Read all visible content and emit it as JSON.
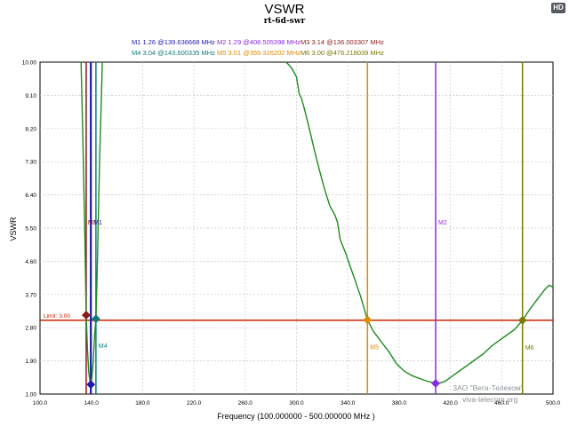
{
  "header": {
    "title": "VSWR",
    "subtitle": "rt-6d-swr",
    "badge": "HD"
  },
  "legend": {
    "row1": [
      {
        "text": "M1  1.26 @139.636668 MHz ",
        "color": "#1a1ab0"
      },
      {
        "text": "M2  1.29 @408.505398 MHz",
        "color": "#8a2be2"
      },
      {
        "text": "M3  3.14 @136.003307 MHz",
        "color": "#8b1a1a"
      }
    ],
    "row2": [
      {
        "text": "M4  3.04 @143.600335 MHz ",
        "color": "#0f7a7a"
      },
      {
        "text": "M5  3.01 @355.326202 MHz",
        "color": "#e08a00"
      },
      {
        "text": "M6  3.00 @476.218039 MHz",
        "color": "#7a7a00"
      }
    ]
  },
  "watermark": {
    "line1": "ЗАО \"Вега-Телеком\"",
    "line2": "viva-telecom.org"
  },
  "chart_data": {
    "type": "line",
    "title": "VSWR",
    "subtitle": "rt-6d-swr",
    "xlabel": "Frequency (100.000000 - 500.000000 MHz )",
    "ylabel": "VSWR",
    "xlim": [
      100,
      500
    ],
    "ylim": [
      1.0,
      10.0
    ],
    "x_ticks": [
      "100.0",
      "140.0",
      "180.0",
      "220.0",
      "260.0",
      "300.0",
      "340.0",
      "380.0",
      "420.0",
      "460.0",
      "500.0"
    ],
    "y_ticks": [
      "1.00",
      "1.90",
      "2.80",
      "3.70",
      "4.60",
      "5.50",
      "6.40",
      "7.30",
      "8.20",
      "9.10",
      "10.00"
    ],
    "grid": true,
    "limit": {
      "value": 3.0,
      "label": "Limit: 3.00",
      "color": "#cc2200"
    },
    "series": [
      {
        "name": "VSWR",
        "color": "#1e8c1e",
        "points": [
          [
            132.0,
            10.0
          ],
          [
            133.5,
            7.8
          ],
          [
            135.0,
            5.2
          ],
          [
            136.0,
            3.14
          ],
          [
            137.0,
            2.2
          ],
          [
            138.0,
            1.6
          ],
          [
            138.8,
            1.38
          ],
          [
            139.64,
            1.26
          ],
          [
            140.5,
            1.45
          ],
          [
            141.5,
            1.9
          ],
          [
            142.5,
            2.55
          ],
          [
            143.6,
            3.04
          ],
          [
            144.5,
            4.2
          ],
          [
            145.5,
            5.8
          ],
          [
            146.6,
            7.5
          ],
          [
            147.8,
            9.0
          ],
          [
            148.6,
            10.0
          ],
          [
            292.0,
            10.0
          ],
          [
            296.0,
            9.85
          ],
          [
            300.0,
            9.6
          ],
          [
            302.0,
            9.15
          ],
          [
            304.0,
            9.0
          ],
          [
            306.0,
            8.75
          ],
          [
            310.0,
            8.2
          ],
          [
            314.0,
            7.6
          ],
          [
            318.0,
            7.05
          ],
          [
            322.0,
            6.55
          ],
          [
            326.0,
            6.1
          ],
          [
            330.0,
            5.85
          ],
          [
            332.0,
            5.65
          ],
          [
            334.0,
            5.2
          ],
          [
            338.0,
            4.85
          ],
          [
            342.0,
            4.45
          ],
          [
            346.0,
            4.05
          ],
          [
            350.0,
            3.65
          ],
          [
            355.33,
            3.01
          ],
          [
            360.0,
            2.7
          ],
          [
            366.0,
            2.42
          ],
          [
            372.0,
            2.15
          ],
          [
            378.0,
            1.82
          ],
          [
            384.0,
            1.62
          ],
          [
            390.0,
            1.5
          ],
          [
            396.0,
            1.42
          ],
          [
            402.0,
            1.35
          ],
          [
            408.51,
            1.29
          ],
          [
            412.0,
            1.3
          ],
          [
            416.0,
            1.35
          ],
          [
            422.0,
            1.5
          ],
          [
            428.0,
            1.65
          ],
          [
            434.0,
            1.8
          ],
          [
            440.0,
            1.95
          ],
          [
            446.0,
            2.1
          ],
          [
            452.0,
            2.3
          ],
          [
            458.0,
            2.45
          ],
          [
            464.0,
            2.6
          ],
          [
            470.0,
            2.75
          ],
          [
            476.22,
            3.0
          ],
          [
            482.0,
            3.3
          ],
          [
            488.0,
            3.58
          ],
          [
            494.0,
            3.85
          ],
          [
            497.0,
            3.95
          ],
          [
            500.0,
            3.9
          ]
        ]
      }
    ],
    "markers": [
      {
        "name": "M1",
        "x": 139.636668,
        "y": 1.26,
        "color": "#1a1ab0",
        "label_pos": "top"
      },
      {
        "name": "M2",
        "x": 408.505398,
        "y": 1.29,
        "color": "#8a2be2",
        "label_pos": "top"
      },
      {
        "name": "M3",
        "x": 136.003307,
        "y": 3.14,
        "color": "#8b1a1a",
        "label_pos": "top"
      },
      {
        "name": "M4",
        "x": 143.600335,
        "y": 3.04,
        "color": "#0f7a7a",
        "label_pos": "bottom"
      },
      {
        "name": "M5",
        "x": 355.326202,
        "y": 3.01,
        "color": "#e08a00",
        "label_pos": "bottom"
      },
      {
        "name": "M6",
        "x": 476.218039,
        "y": 3.0,
        "color": "#7a7a00",
        "label_pos": "bottom"
      }
    ]
  }
}
